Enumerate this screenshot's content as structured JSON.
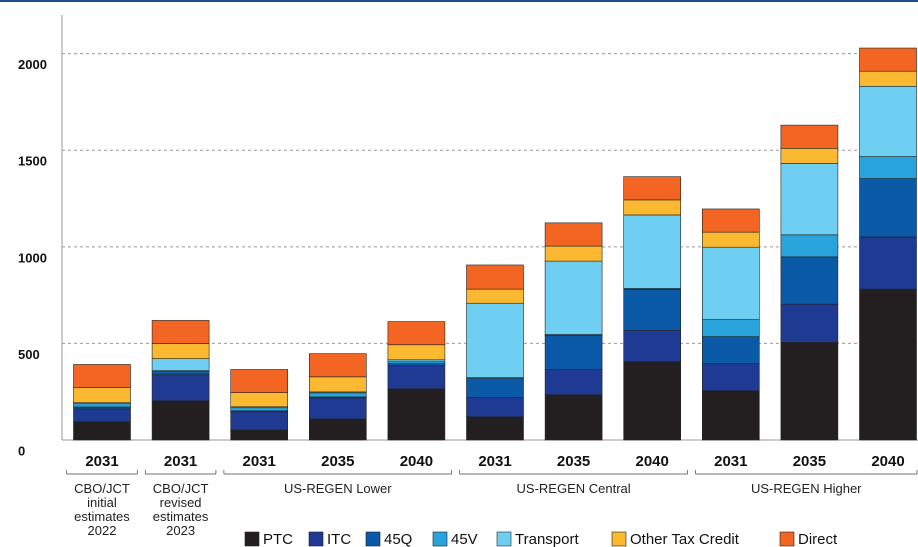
{
  "chart_data": {
    "type": "bar",
    "stacked": true,
    "groups": [
      {
        "label": "CBO/JCT initial estimates 2022",
        "categories": [
          "2031"
        ]
      },
      {
        "label": "CBO/JCT revised estimates 2023",
        "categories": [
          "2031"
        ]
      },
      {
        "label": "US-REGEN Lower",
        "categories": [
          "2031",
          "2035",
          "2040"
        ]
      },
      {
        "label": "US-REGEN Central",
        "categories": [
          "2031",
          "2035",
          "2040"
        ]
      },
      {
        "label": "US-REGEN Higher",
        "categories": [
          "2031",
          "2035",
          "2040"
        ]
      }
    ],
    "series": [
      {
        "name": "PTC",
        "color": "#231f20",
        "values": [
          94,
          203,
          52,
          109,
          265,
          120,
          234,
          406,
          255,
          505,
          781
        ]
      },
      {
        "name": "ITC",
        "color": "#1f3a93",
        "values": [
          67,
          135,
          94,
          109,
          120,
          99,
          130,
          161,
          140,
          198,
          270
        ]
      },
      {
        "name": "45Q",
        "color": "#0a5aa8",
        "values": [
          10,
          16,
          5,
          5,
          10,
          99,
          177,
          213,
          140,
          245,
          302
        ]
      },
      {
        "name": "45V",
        "color": "#29a3dc",
        "values": [
          17,
          5,
          16,
          21,
          10,
          5,
          5,
          5,
          88,
          114,
          114
        ]
      },
      {
        "name": "Transport",
        "color": "#6fcff2",
        "values": [
          5,
          62,
          5,
          5,
          10,
          385,
          380,
          380,
          375,
          370,
          364
        ]
      },
      {
        "name": "Other Tax Credit",
        "color": "#fbb831",
        "values": [
          78,
          78,
          73,
          78,
          78,
          73,
          78,
          78,
          78,
          78,
          78
        ]
      },
      {
        "name": "Direct",
        "color": "#f26522",
        "values": [
          120,
          120,
          120,
          120,
          120,
          125,
          120,
          120,
          120,
          120,
          120
        ]
      }
    ],
    "ylim": [
      0,
      2200
    ],
    "yticks": [
      0,
      500,
      1000,
      1500,
      2000
    ],
    "grid": true
  }
}
